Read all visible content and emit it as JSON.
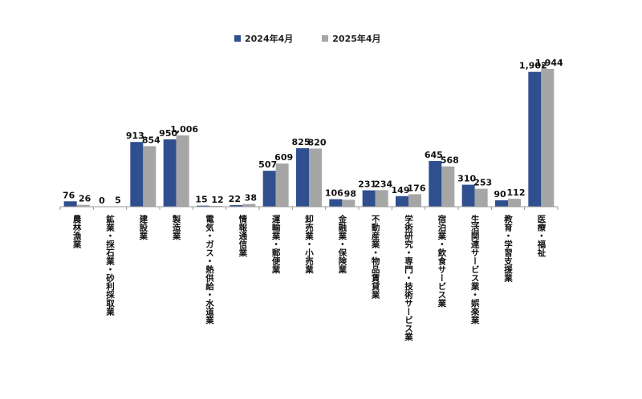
{
  "chart_data": {
    "type": "bar",
    "categories": [
      "農林漁業",
      "鉱業・採石業・砂利採取業",
      "建設業",
      "製造業",
      "電気・ガス・熱供給・水道業",
      "情報通信業",
      "運輸業・郵便業",
      "卸売業・小売業",
      "金融業・保険業",
      "不動産業・物品賃貸業",
      "学術研究・専門・技術サービス業",
      "宿泊業・飲食サービス業",
      "生活関連サービス業・娯楽業",
      "教育・学習支援業",
      "医療・福祉"
    ],
    "series": [
      {
        "name": "2024年4月",
        "color": "#2F4F8F",
        "values": [
          76,
          0,
          913,
          950,
          15,
          22,
          507,
          825,
          106,
          231,
          149,
          645,
          310,
          90,
          1902
        ],
        "labels": [
          "76",
          "0",
          "913",
          "950",
          "15",
          "22",
          "507",
          "825",
          "106",
          "231",
          "149",
          "645",
          "310",
          "90",
          "1,902"
        ]
      },
      {
        "name": "2025年4月",
        "color": "#A6A6A6",
        "values": [
          26,
          5,
          854,
          1006,
          12,
          38,
          609,
          820,
          98,
          234,
          176,
          568,
          253,
          112,
          1944
        ],
        "labels": [
          "26",
          "5",
          "854",
          "1,006",
          "12",
          "38",
          "609",
          "820",
          "98",
          "234",
          "176",
          "568",
          "253",
          "112",
          "1,944"
        ]
      }
    ],
    "title": "",
    "xlabel": "",
    "ylabel": "",
    "ylim": [
      0,
      2000
    ],
    "grid": false,
    "legend": "top-center"
  }
}
